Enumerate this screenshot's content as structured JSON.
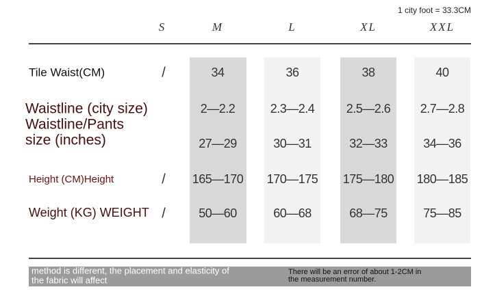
{
  "note": "1 city foot = 33.3CM",
  "sizes": [
    "S",
    "M",
    "L",
    "XL",
    "XXL"
  ],
  "rows": [
    {
      "label_lines": [
        "Tile Waist(CM)"
      ],
      "s": "/",
      "values": [
        "34",
        "36",
        "38",
        "40"
      ]
    },
    {
      "label_lines": [
        "Waistline (city size)"
      ],
      "values": [
        "2—2.2",
        "2.3—2.4",
        "2.5—2.6",
        "2.7—2.8"
      ]
    },
    {
      "label_lines": [
        "Waistline/Pants",
        "size (inches)"
      ],
      "values": [
        "27—29",
        "30—31",
        "32—33",
        "34—36"
      ]
    },
    {
      "label_lines": [
        "Height (CM)Height"
      ],
      "s": "/",
      "values": [
        "165—170",
        "170—175",
        "175—180",
        "180—185"
      ]
    },
    {
      "label_lines": [
        "Weight (KG) WEIGHT"
      ],
      "s": "/",
      "values": [
        "50—60",
        "60—68",
        "68—75",
        "75—85"
      ]
    }
  ],
  "footer": {
    "left_lines": [
      "method is different, the placement and elasticity of",
      "the fabric will affect"
    ],
    "right_lines": [
      "There will be an error of about 1-2CM in",
      "the measurement number."
    ]
  }
}
